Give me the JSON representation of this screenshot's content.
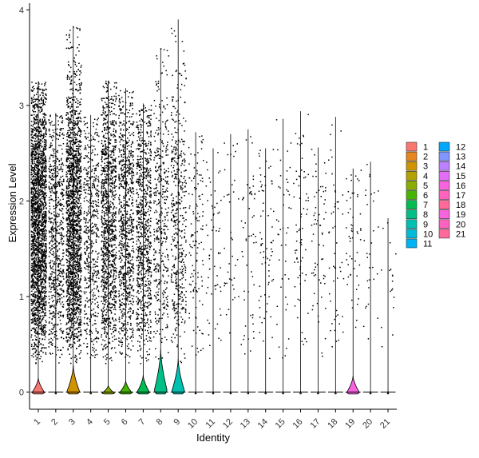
{
  "chart_data": {
    "type": "violin",
    "title": "",
    "xlabel": "Identity",
    "ylabel": "Expression Level",
    "ylim": [
      -0.18,
      4.07
    ],
    "yticks": [
      0,
      1,
      2,
      3,
      4
    ],
    "categories": [
      "1",
      "2",
      "3",
      "4",
      "5",
      "6",
      "7",
      "8",
      "9",
      "10",
      "11",
      "12",
      "13",
      "14",
      "15",
      "16",
      "17",
      "18",
      "19",
      "20",
      "21"
    ],
    "colors": [
      "#F8766D",
      "#E7851E",
      "#D09400",
      "#B2A100",
      "#89AC00",
      "#45B500",
      "#00BC51",
      "#00C087",
      "#00C0B2",
      "#00BCD6",
      "#00B3F2",
      "#00A6FF",
      "#7F96FF",
      "#BC81FF",
      "#E26EF7",
      "#F863DF",
      "#FF62BF",
      "#FF6A9A",
      "#F863DF",
      "#FF62BF",
      "#FF6A9A"
    ],
    "zero_fraction": [
      0.95,
      0.99,
      0.8,
      0.99,
      0.96,
      0.9,
      0.86,
      0.55,
      0.65,
      0.99,
      0.995,
      0.995,
      0.99,
      0.995,
      0.995,
      0.995,
      0.995,
      0.995,
      0.85,
      0.995,
      0.995
    ],
    "violin_peak_height": [
      0.15,
      0.01,
      0.28,
      0.01,
      0.07,
      0.12,
      0.18,
      0.45,
      0.35,
      0.01,
      0.01,
      0.01,
      0.01,
      0.01,
      0.01,
      0.01,
      0.01,
      0.01,
      0.17,
      0.01,
      0.01
    ],
    "violin_half_width": [
      0.42,
      0.05,
      0.42,
      0.05,
      0.42,
      0.42,
      0.42,
      0.42,
      0.42,
      0.05,
      0.05,
      0.05,
      0.05,
      0.05,
      0.05,
      0.05,
      0.05,
      0.05,
      0.42,
      0.05,
      0.05
    ],
    "max_expression": [
      3.25,
      2.92,
      3.83,
      2.9,
      3.26,
      3.18,
      3.02,
      3.6,
      3.9,
      2.72,
      2.55,
      2.7,
      2.75,
      2.55,
      2.86,
      2.94,
      2.56,
      2.88,
      2.34,
      2.41,
      1.82
    ],
    "points_shown": [
      2200,
      700,
      1900,
      520,
      1150,
      880,
      820,
      420,
      470,
      130,
      60,
      40,
      55,
      70,
      45,
      70,
      65,
      50,
      55,
      30,
      18
    ],
    "legend": {
      "position": "right",
      "columns": 2,
      "items": [
        "1",
        "2",
        "3",
        "4",
        "5",
        "6",
        "7",
        "8",
        "9",
        "10",
        "11",
        "12",
        "13",
        "14",
        "15",
        "16",
        "17",
        "18",
        "19",
        "20",
        "21"
      ]
    },
    "grid": false
  }
}
